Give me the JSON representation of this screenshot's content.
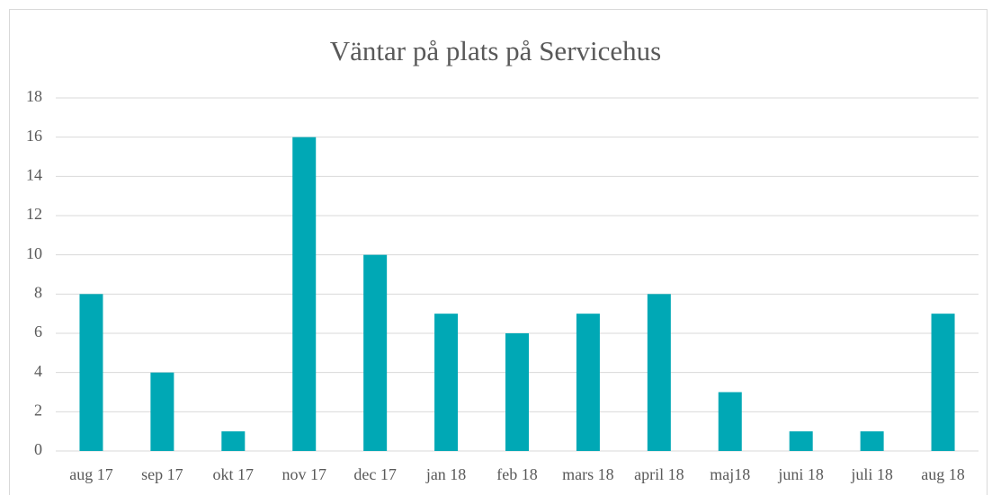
{
  "chart_data": {
    "type": "bar",
    "title": "Väntar på plats på Servicehus",
    "categories": [
      "aug 17",
      "sep 17",
      "okt 17",
      "nov 17",
      "dec 17",
      "jan 18",
      "feb 18",
      "mars 18",
      "april 18",
      "maj18",
      "juni 18",
      "juli 18",
      "aug 18"
    ],
    "values": [
      8,
      4,
      1,
      16,
      10,
      7,
      6,
      7,
      8,
      3,
      1,
      1,
      7
    ],
    "color": "#00a8b5",
    "ylim": [
      0,
      18
    ],
    "yticks": [
      0,
      2,
      4,
      6,
      8,
      10,
      12,
      14,
      16,
      18
    ],
    "grid": true
  }
}
